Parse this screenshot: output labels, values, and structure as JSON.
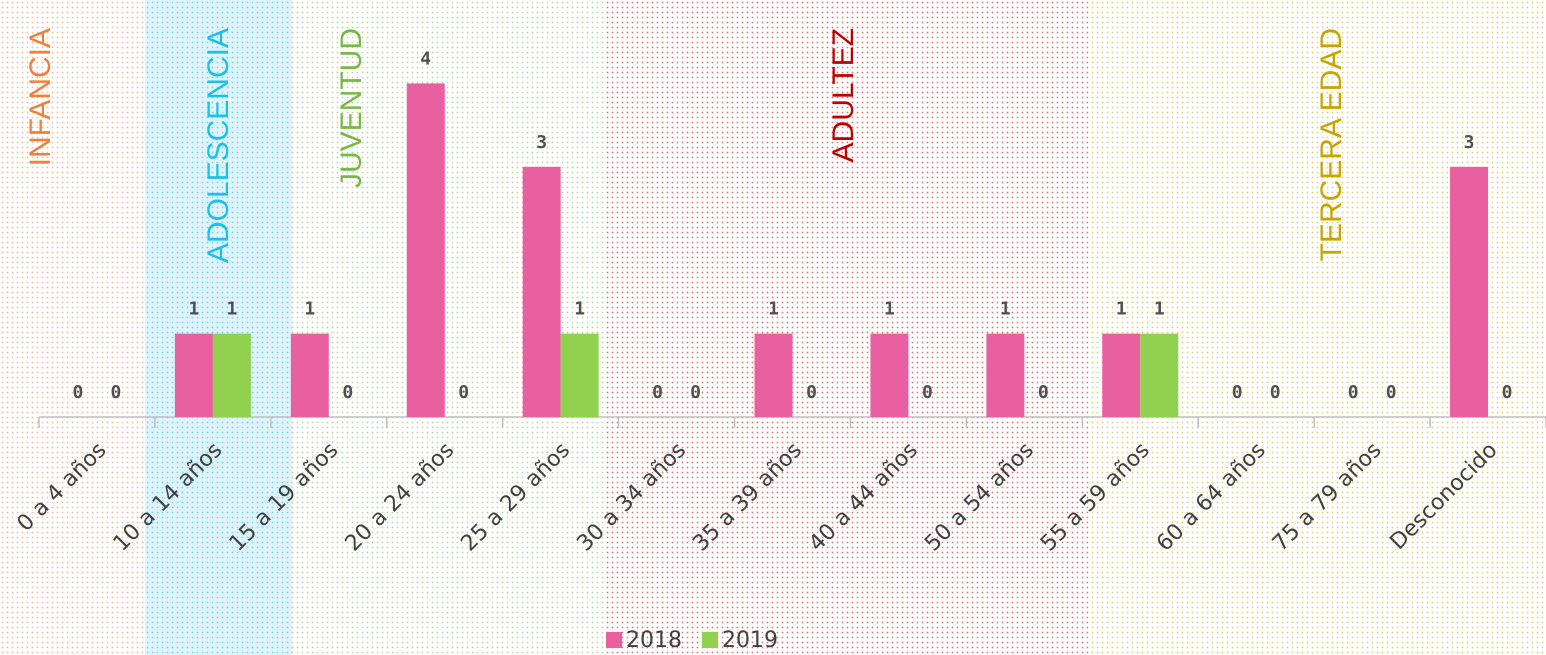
{
  "chart_data": {
    "type": "bar",
    "categories": [
      "0 a 4 años",
      "10 a 14 años",
      "15 a 19 años",
      "20 a 24 años",
      "25 a 29 años",
      "30 a 34 años",
      "35 a 39 años",
      "40 a 44 años",
      "50 a 54 años",
      "55 a 59 años",
      "60 a 64 años",
      "75 a 79 años",
      "Desconocido"
    ],
    "series": [
      {
        "name": "2018",
        "color": "#e8609f",
        "values": [
          0,
          1,
          1,
          4,
          3,
          0,
          1,
          1,
          1,
          1,
          0,
          0,
          3
        ]
      },
      {
        "name": "2019",
        "color": "#92d050",
        "values": [
          0,
          1,
          0,
          0,
          1,
          0,
          0,
          0,
          0,
          1,
          0,
          0,
          0
        ]
      }
    ],
    "ylim": [
      0,
      5
    ],
    "legend": "bottom",
    "annotations": [
      {
        "text": "INFANCIA",
        "color": "#f07f3c"
      },
      {
        "text": "ADOLESCENCIA",
        "color": "#1ec0e8"
      },
      {
        "text": "JUVENTUD",
        "color": "#7ab648"
      },
      {
        "text": "ADULTEZ",
        "color": "#c00000"
      },
      {
        "text": "TERCERA EDAD",
        "color": "#c8a400"
      }
    ]
  }
}
